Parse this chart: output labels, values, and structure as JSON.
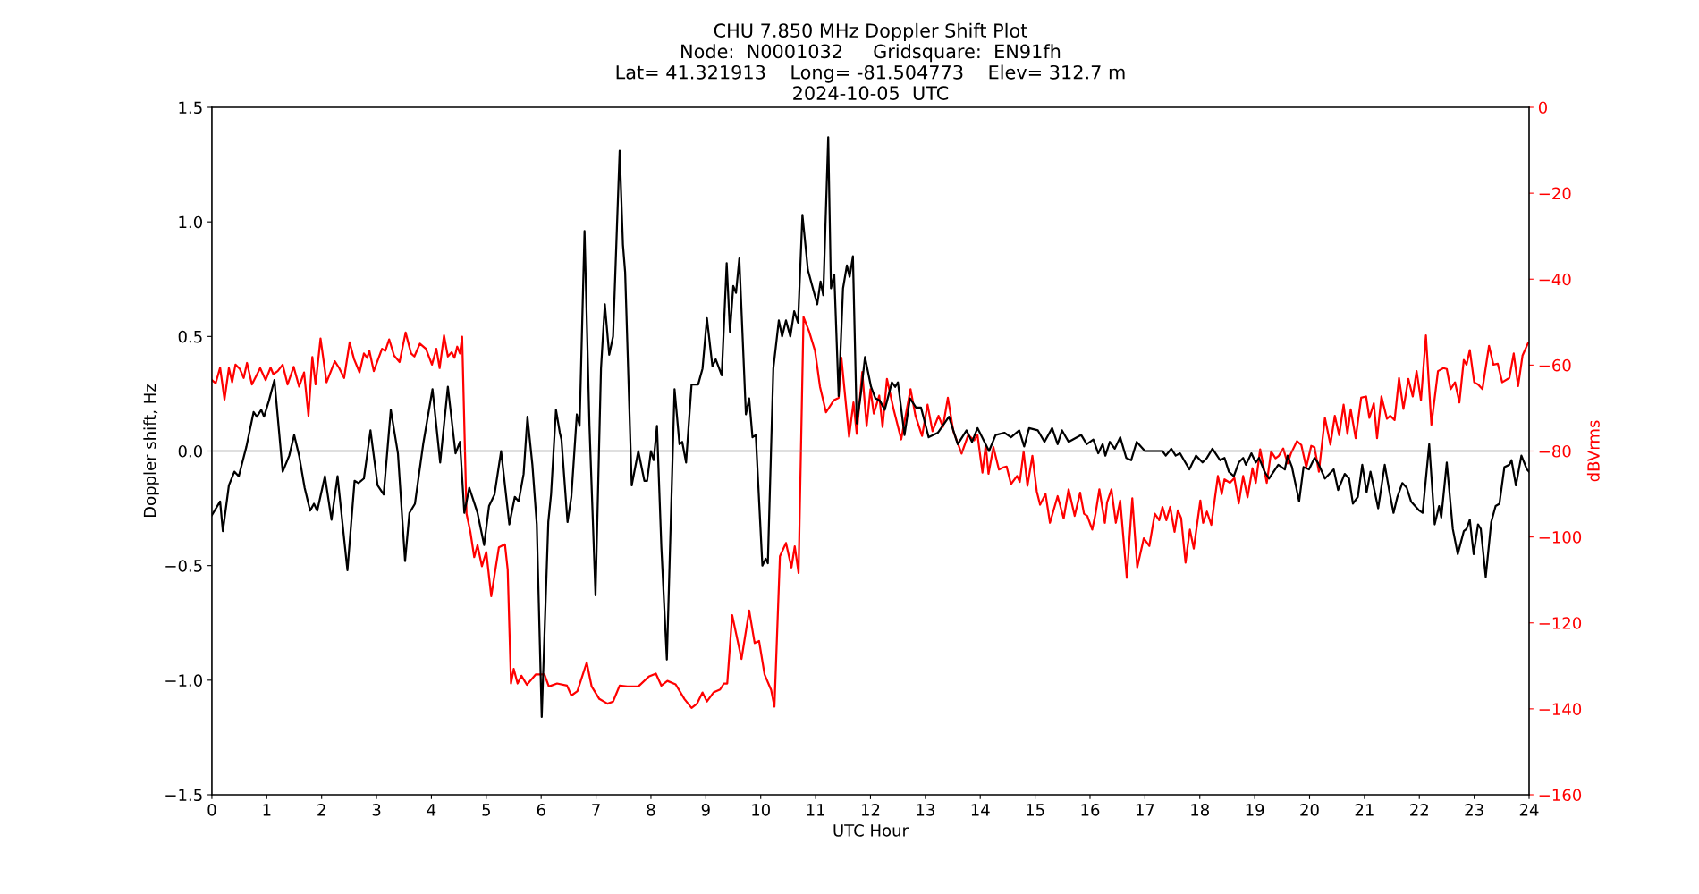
{
  "chart_data": {
    "type": "line",
    "title": "CHU 7.850 MHz Doppler Shift Plot\nNode:  N0001032     Gridsquare:  EN91fh\nLat= 41.321913    Long= -81.504773    Elev= 312.7 m\n2024-10-05  UTC",
    "xlabel": "UTC Hour",
    "ylabel": "Doppler shift, Hz",
    "y2label": "dBVrms",
    "xlim": [
      0,
      24
    ],
    "xticks": [
      0,
      1,
      2,
      3,
      4,
      5,
      6,
      7,
      8,
      9,
      10,
      11,
      12,
      13,
      14,
      15,
      16,
      17,
      18,
      19,
      20,
      21,
      22,
      23,
      24
    ],
    "ylim": [
      -1.5,
      1.5
    ],
    "yticks": [
      {
        "value": -1.5,
        "label": "−1.5"
      },
      {
        "value": -1.0,
        "label": "−1.0"
      },
      {
        "value": -0.5,
        "label": "−0.5"
      },
      {
        "value": 0.0,
        "label": "0.0"
      },
      {
        "value": 0.5,
        "label": "0.5"
      },
      {
        "value": 1.0,
        "label": "1.0"
      },
      {
        "value": 1.5,
        "label": "1.5"
      }
    ],
    "y2lim": [
      -160,
      0
    ],
    "y2ticks": [
      {
        "value": -160,
        "label": "−160"
      },
      {
        "value": -140,
        "label": "−140"
      },
      {
        "value": -120,
        "label": "−120"
      },
      {
        "value": -100,
        "label": "−100"
      },
      {
        "value": -80,
        "label": "−80"
      },
      {
        "value": -60,
        "label": "−60"
      },
      {
        "value": -40,
        "label": "−40"
      },
      {
        "value": -20,
        "label": "−20"
      },
      0
    ],
    "grid": false,
    "legend": false,
    "marker": "none",
    "line_style": "solid",
    "ref_lines": [
      {
        "axis": "y",
        "value": 0,
        "color": "#808080",
        "line_style": "solid"
      }
    ],
    "series": [
      {
        "color": "#000000",
        "axis": "y",
        "x": [
          0.0,
          0.15,
          0.2,
          0.31,
          0.41,
          0.49,
          0.63,
          0.76,
          0.82,
          0.9,
          0.95,
          1.04,
          1.14,
          1.29,
          1.41,
          1.5,
          1.59,
          1.69,
          1.79,
          1.86,
          1.92,
          2.06,
          2.18,
          2.29,
          2.47,
          2.6,
          2.67,
          2.77,
          2.89,
          3.02,
          3.13,
          3.26,
          3.39,
          3.52,
          3.6,
          3.7,
          3.85,
          4.02,
          4.16,
          4.3,
          4.44,
          4.52,
          4.6,
          4.69,
          4.84,
          4.96,
          5.05,
          5.15,
          5.27,
          5.42,
          5.52,
          5.59,
          5.68,
          5.75,
          5.84,
          5.92,
          6.01,
          6.13,
          6.18,
          6.27,
          6.34,
          6.37,
          6.48,
          6.55,
          6.65,
          6.7,
          6.79,
          6.88,
          6.99,
          7.09,
          7.16,
          7.24,
          7.31,
          7.43,
          7.49,
          7.53,
          7.65,
          7.77,
          7.88,
          7.93,
          8.0,
          8.05,
          8.11,
          8.19,
          8.29,
          8.36,
          8.43,
          8.52,
          8.57,
          8.64,
          8.74,
          8.86,
          8.94,
          9.02,
          9.12,
          9.18,
          9.29,
          9.38,
          9.44,
          9.5,
          9.55,
          9.61,
          9.73,
          9.79,
          9.85,
          9.91,
          10.03,
          10.09,
          10.13,
          10.23,
          10.33,
          10.39,
          10.46,
          10.54,
          10.61,
          10.68,
          10.76,
          10.86,
          11.03,
          11.09,
          11.14,
          11.23,
          11.28,
          11.34,
          11.42,
          11.5,
          11.57,
          11.62,
          11.68,
          11.75,
          11.83,
          11.9,
          12.01,
          12.09,
          12.17,
          12.26,
          12.39,
          12.45,
          12.5,
          12.62,
          12.72,
          12.83,
          12.92,
          13.06,
          13.23,
          13.43,
          13.59,
          13.75,
          13.85,
          13.95,
          14.16,
          14.28,
          14.44,
          14.56,
          14.71,
          14.8,
          14.89,
          15.05,
          15.17,
          15.31,
          15.41,
          15.49,
          15.61,
          15.84,
          15.94,
          16.06,
          16.15,
          16.23,
          16.28,
          16.36,
          16.45,
          16.55,
          16.66,
          16.75,
          16.85,
          17.0,
          17.16,
          17.32,
          17.38,
          17.48,
          17.56,
          17.64,
          17.81,
          17.93,
          18.05,
          18.13,
          18.23,
          18.37,
          18.45,
          18.53,
          18.62,
          18.71,
          18.79,
          18.84,
          18.94,
          19.02,
          19.08,
          19.18,
          19.26,
          19.43,
          19.55,
          19.6,
          19.68,
          19.81,
          19.89,
          19.99,
          20.09,
          20.15,
          20.28,
          20.44,
          20.52,
          20.64,
          20.72,
          20.79,
          20.88,
          20.96,
          21.04,
          21.11,
          21.25,
          21.37,
          21.45,
          21.53,
          21.6,
          21.69,
          21.77,
          21.85,
          22.0,
          22.06,
          22.18,
          22.28,
          22.36,
          22.4,
          22.5,
          22.61,
          22.7,
          22.81,
          22.86,
          22.92,
          22.99,
          23.07,
          23.12,
          23.21,
          23.31,
          23.39,
          23.46,
          23.55,
          23.64,
          23.68,
          23.76,
          23.86,
          23.96,
          24.0
        ],
        "values": [
          -0.28,
          -0.22,
          -0.35,
          -0.15,
          -0.09,
          -0.11,
          0.02,
          0.17,
          0.15,
          0.18,
          0.15,
          0.22,
          0.31,
          -0.09,
          -0.02,
          0.07,
          -0.02,
          -0.16,
          -0.26,
          -0.23,
          -0.26,
          -0.11,
          -0.3,
          -0.11,
          -0.52,
          -0.13,
          -0.14,
          -0.12,
          0.09,
          -0.15,
          -0.19,
          0.18,
          -0.01,
          -0.48,
          -0.27,
          -0.23,
          0.03,
          0.27,
          -0.05,
          0.28,
          -0.01,
          0.04,
          -0.27,
          -0.16,
          -0.27,
          -0.41,
          -0.24,
          -0.19,
          0.0,
          -0.32,
          -0.2,
          -0.22,
          -0.1,
          0.15,
          -0.06,
          -0.32,
          -1.16,
          -0.31,
          -0.19,
          0.18,
          0.08,
          0.05,
          -0.31,
          -0.2,
          0.16,
          0.11,
          0.96,
          0.11,
          -0.63,
          0.36,
          0.64,
          0.42,
          0.5,
          1.31,
          0.9,
          0.78,
          -0.15,
          0.0,
          -0.13,
          -0.13,
          0.0,
          -0.04,
          0.11,
          -0.42,
          -0.91,
          -0.32,
          0.27,
          0.03,
          0.04,
          -0.05,
          0.29,
          0.29,
          0.36,
          0.58,
          0.37,
          0.4,
          0.33,
          0.82,
          0.52,
          0.72,
          0.69,
          0.84,
          0.16,
          0.23,
          0.06,
          0.07,
          -0.5,
          -0.47,
          -0.49,
          0.36,
          0.57,
          0.5,
          0.57,
          0.5,
          0.61,
          0.56,
          1.03,
          0.79,
          0.64,
          0.74,
          0.68,
          1.37,
          0.71,
          0.77,
          0.24,
          0.71,
          0.81,
          0.76,
          0.85,
          0.12,
          0.26,
          0.41,
          0.28,
          0.23,
          0.22,
          0.18,
          0.3,
          0.28,
          0.3,
          0.07,
          0.23,
          0.19,
          0.19,
          0.06,
          0.08,
          0.15,
          0.03,
          0.09,
          0.04,
          0.1,
          0.0,
          0.07,
          0.08,
          0.06,
          0.09,
          0.02,
          0.1,
          0.09,
          0.04,
          0.1,
          0.03,
          0.09,
          0.04,
          0.07,
          0.03,
          0.05,
          -0.01,
          0.03,
          -0.02,
          0.04,
          0.01,
          0.06,
          -0.03,
          -0.04,
          0.04,
          0.0,
          0.0,
          0.0,
          -0.02,
          0.01,
          -0.02,
          -0.01,
          -0.08,
          -0.02,
          -0.05,
          -0.03,
          0.01,
          -0.04,
          -0.03,
          -0.09,
          -0.11,
          -0.05,
          -0.03,
          -0.06,
          -0.01,
          -0.05,
          -0.03,
          -0.09,
          -0.12,
          -0.06,
          -0.08,
          -0.02,
          -0.07,
          -0.22,
          -0.07,
          -0.08,
          -0.03,
          -0.05,
          -0.12,
          -0.08,
          -0.17,
          -0.1,
          -0.12,
          -0.23,
          -0.2,
          -0.06,
          -0.18,
          -0.09,
          -0.25,
          -0.06,
          -0.17,
          -0.27,
          -0.2,
          -0.14,
          -0.16,
          -0.22,
          -0.26,
          -0.27,
          0.03,
          -0.32,
          -0.24,
          -0.29,
          -0.05,
          -0.34,
          -0.45,
          -0.35,
          -0.34,
          -0.3,
          -0.45,
          -0.32,
          -0.34,
          -0.55,
          -0.31,
          -0.24,
          -0.23,
          -0.07,
          -0.06,
          -0.04,
          -0.15,
          -0.02,
          -0.08,
          -0.09
        ]
      },
      {
        "color": "#ff0000",
        "axis": "y2",
        "x": [
          0.0,
          0.07,
          0.15,
          0.23,
          0.31,
          0.37,
          0.43,
          0.51,
          0.58,
          0.64,
          0.73,
          0.88,
          0.98,
          1.07,
          1.12,
          1.2,
          1.29,
          1.38,
          1.49,
          1.59,
          1.68,
          1.76,
          1.83,
          1.89,
          1.98,
          2.09,
          2.24,
          2.32,
          2.41,
          2.51,
          2.59,
          2.69,
          2.77,
          2.83,
          2.87,
          2.95,
          3.1,
          3.16,
          3.23,
          3.32,
          3.42,
          3.53,
          3.63,
          3.69,
          3.79,
          3.9,
          4.01,
          4.09,
          4.15,
          4.23,
          4.3,
          4.37,
          4.42,
          4.47,
          4.52,
          4.56,
          4.64,
          4.71,
          4.78,
          4.84,
          4.92,
          5.0,
          5.09,
          5.23,
          5.34,
          5.39,
          5.45,
          5.5,
          5.57,
          5.64,
          5.74,
          5.9,
          6.06,
          6.14,
          6.29,
          6.47,
          6.55,
          6.66,
          6.83,
          6.92,
          7.06,
          7.21,
          7.31,
          7.43,
          7.57,
          7.77,
          7.96,
          8.09,
          8.19,
          8.3,
          8.45,
          8.61,
          8.74,
          8.84,
          8.94,
          9.02,
          9.14,
          9.26,
          9.33,
          9.39,
          9.48,
          9.65,
          9.79,
          9.89,
          9.97,
          10.07,
          10.19,
          10.25,
          10.35,
          10.46,
          10.56,
          10.62,
          10.69,
          10.78,
          10.88,
          10.99,
          11.08,
          11.19,
          11.33,
          11.42,
          11.47,
          11.61,
          11.69,
          11.75,
          11.85,
          11.93,
          12.0,
          12.06,
          12.16,
          12.22,
          12.3,
          12.42,
          12.56,
          12.73,
          12.82,
          12.94,
          13.04,
          13.13,
          13.24,
          13.32,
          13.41,
          13.51,
          13.66,
          13.78,
          13.89,
          13.95,
          14.04,
          14.1,
          14.15,
          14.24,
          14.34,
          14.42,
          14.48,
          14.56,
          14.67,
          14.72,
          14.79,
          14.86,
          14.95,
          15.03,
          15.09,
          15.19,
          15.27,
          15.41,
          15.52,
          15.61,
          15.72,
          15.82,
          15.89,
          15.95,
          16.04,
          16.1,
          16.17,
          16.27,
          16.31,
          16.39,
          16.47,
          16.55,
          16.67,
          16.77,
          16.86,
          16.98,
          17.08,
          17.18,
          17.26,
          17.32,
          17.39,
          17.46,
          17.54,
          17.6,
          17.66,
          17.74,
          17.82,
          17.89,
          18.01,
          18.06,
          18.13,
          18.21,
          18.33,
          18.4,
          18.45,
          18.55,
          18.63,
          18.71,
          18.79,
          18.87,
          18.96,
          19.02,
          19.1,
          19.22,
          19.3,
          19.38,
          19.44,
          19.52,
          19.6,
          19.66,
          19.77,
          19.85,
          19.94,
          20.03,
          20.09,
          20.17,
          20.28,
          20.38,
          20.46,
          20.54,
          20.62,
          20.69,
          20.75,
          20.84,
          20.94,
          21.03,
          21.09,
          21.17,
          21.23,
          21.31,
          21.41,
          21.47,
          21.55,
          21.63,
          21.71,
          21.8,
          21.88,
          21.95,
          22.03,
          22.12,
          22.22,
          22.34,
          22.44,
          22.5,
          22.57,
          22.65,
          22.73,
          22.81,
          22.86,
          22.92,
          23.0,
          23.07,
          23.15,
          23.27,
          23.35,
          23.43,
          23.51,
          23.64,
          23.72,
          23.8,
          23.88,
          23.98,
          24.0
        ],
        "values": [
          -63.5,
          -64.2,
          -60.6,
          -68.0,
          -60.7,
          -64.0,
          -59.9,
          -60.9,
          -63.0,
          -59.5,
          -64.5,
          -60.7,
          -63.5,
          -60.6,
          -62.1,
          -61.4,
          -59.9,
          -64.5,
          -60.4,
          -65.0,
          -61.7,
          -71.8,
          -58.1,
          -64.5,
          -53.8,
          -64.0,
          -59.1,
          -60.7,
          -63.0,
          -54.7,
          -58.6,
          -61.7,
          -57.3,
          -58.3,
          -56.7,
          -61.4,
          -56.2,
          -56.7,
          -54.0,
          -57.8,
          -59.3,
          -52.4,
          -57.3,
          -58.0,
          -55.0,
          -56.2,
          -59.9,
          -56.2,
          -60.7,
          -53.1,
          -58.0,
          -57.0,
          -58.3,
          -55.7,
          -57.3,
          -53.4,
          -94.6,
          -98.8,
          -104.7,
          -101.9,
          -106.8,
          -103.5,
          -113.8,
          -102.4,
          -101.7,
          -107.6,
          -134.1,
          -130.7,
          -134.1,
          -132.3,
          -134.4,
          -132.0,
          -132.0,
          -134.8,
          -134.1,
          -134.6,
          -136.9,
          -135.9,
          -129.2,
          -134.8,
          -137.7,
          -138.8,
          -138.3,
          -134.6,
          -134.8,
          -134.8,
          -132.5,
          -131.8,
          -134.6,
          -133.5,
          -134.3,
          -137.7,
          -139.8,
          -138.8,
          -136.2,
          -138.3,
          -136.2,
          -135.5,
          -134.1,
          -134.1,
          -118.2,
          -128.4,
          -117.1,
          -124.7,
          -124.2,
          -132.0,
          -135.6,
          -139.5,
          -104.5,
          -101.4,
          -107.1,
          -102.2,
          -108.4,
          -48.8,
          -52.1,
          -56.7,
          -65.0,
          -71.0,
          -68.2,
          -67.6,
          -58.3,
          -76.7,
          -68.7,
          -76.0,
          -61.6,
          -74.2,
          -65.6,
          -71.3,
          -67.1,
          -74.4,
          -63.2,
          -70.2,
          -77.3,
          -65.6,
          -71.8,
          -76.5,
          -69.2,
          -75.4,
          -71.8,
          -74.4,
          -67.6,
          -75.4,
          -80.6,
          -76.3,
          -77.5,
          -76.3,
          -85.0,
          -78.6,
          -85.3,
          -79.1,
          -84.3,
          -83.8,
          -83.6,
          -87.7,
          -85.8,
          -87.2,
          -80.1,
          -88.1,
          -81.1,
          -89.4,
          -92.5,
          -90.0,
          -96.7,
          -90.5,
          -95.7,
          -88.9,
          -95.1,
          -89.7,
          -94.6,
          -95.1,
          -98.3,
          -94.6,
          -88.9,
          -96.7,
          -92.0,
          -88.9,
          -96.7,
          -91.5,
          -109.5,
          -91.0,
          -107.1,
          -100.3,
          -102.1,
          -94.6,
          -96.1,
          -93.0,
          -96.1,
          -93.0,
          -98.8,
          -93.8,
          -95.6,
          -106.0,
          -98.3,
          -102.7,
          -91.5,
          -96.7,
          -94.1,
          -97.2,
          -85.8,
          -90.0,
          -86.6,
          -87.4,
          -86.3,
          -92.2,
          -85.8,
          -90.8,
          -84.0,
          -87.4,
          -79.6,
          -87.4,
          -80.1,
          -81.7,
          -81.1,
          -79.4,
          -82.9,
          -80.6,
          -77.7,
          -78.6,
          -83.8,
          -78.8,
          -79.1,
          -84.8,
          -72.3,
          -78.5,
          -71.8,
          -76.3,
          -69.2,
          -76.0,
          -70.3,
          -77.0,
          -67.6,
          -67.3,
          -72.3,
          -68.9,
          -77.0,
          -67.3,
          -72.5,
          -71.8,
          -72.8,
          -63.0,
          -70.2,
          -63.2,
          -67.3,
          -61.4,
          -68.2,
          -53.1,
          -73.9,
          -61.4,
          -60.7,
          -60.9,
          -65.6,
          -64.0,
          -68.7,
          -58.8,
          -59.9,
          -56.5,
          -64.0,
          -64.5,
          -65.6,
          -55.5,
          -59.9,
          -59.7,
          -64.0,
          -63.0,
          -57.3,
          -64.9,
          -57.8,
          -54.9,
          -54.9
        ]
      }
    ]
  }
}
